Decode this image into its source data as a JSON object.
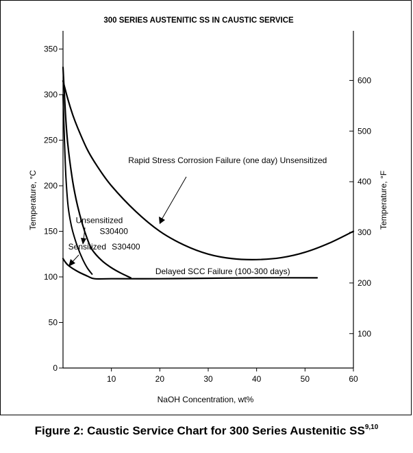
{
  "chart_data": {
    "type": "line",
    "title": "300 SERIES AUSTENITIC SS IN CAUSTIC SERVICE",
    "xlabel": "NaOH Concentration, wt%",
    "ylabel": "Temperature, °C",
    "y2label": "Temperature, °F",
    "xlim": [
      0,
      60
    ],
    "ylim": [
      0,
      370
    ],
    "y2lim": [
      32,
      698
    ],
    "x_ticks": [
      10,
      20,
      30,
      40,
      50,
      60
    ],
    "y_ticks": [
      0,
      50,
      100,
      150,
      200,
      250,
      300,
      350
    ],
    "y2_ticks": [
      100,
      200,
      300,
      400,
      500,
      600
    ],
    "grid": false,
    "series": [
      {
        "name": "Rapid Stress Corrosion Failure (one day) Unsensitized",
        "x": [
          0,
          1,
          2,
          3,
          5,
          7,
          10,
          15,
          20,
          25,
          30,
          35,
          40,
          45,
          50,
          55,
          60
        ],
        "y": [
          315,
          295,
          278,
          264,
          240,
          222,
          200,
          172,
          150,
          135,
          125,
          120,
          119,
          121,
          127,
          137,
          150
        ]
      },
      {
        "name": "Unsensitized S30400",
        "x": [
          0,
          0.5,
          1,
          2,
          3,
          4,
          5,
          6,
          8,
          10,
          12,
          14
        ],
        "y": [
          330,
          280,
          245,
          205,
          178,
          158,
          142,
          130,
          118,
          110,
          104,
          99
        ]
      },
      {
        "name": "Sensitized S30400",
        "x": [
          0,
          0.3,
          0.6,
          1,
          1.5,
          2,
          3,
          4,
          5,
          6
        ],
        "y": [
          300,
          250,
          210,
          180,
          162,
          150,
          133,
          120,
          110,
          103
        ]
      },
      {
        "name": "Delayed SCC Failure (100-300 days)",
        "x": [
          0,
          1,
          3,
          5,
          6.5,
          10,
          20,
          30,
          40,
          52.5
        ],
        "y": [
          120,
          113,
          106,
          101,
          98,
          98,
          98,
          98.5,
          99,
          99
        ]
      }
    ],
    "annotations": [
      {
        "text": "Rapid Stress Corrosion Failure (one day) Unsensitized",
        "x": 34,
        "y": 225
      },
      {
        "text": "Unsensitized",
        "x": 7.5,
        "y": 159
      },
      {
        "text": "S30400",
        "x": 10.5,
        "y": 147
      },
      {
        "text": "Sensitized",
        "x": 5,
        "y": 130
      },
      {
        "text": "S30400",
        "x": 13,
        "y": 130
      },
      {
        "text": "Delayed SCC Failure (100-300 days)",
        "x": 33,
        "y": 103
      }
    ]
  },
  "caption": {
    "text": "Figure 2: Caustic Service Chart for 300 Series Austenitic SS",
    "sup": "9,10"
  }
}
